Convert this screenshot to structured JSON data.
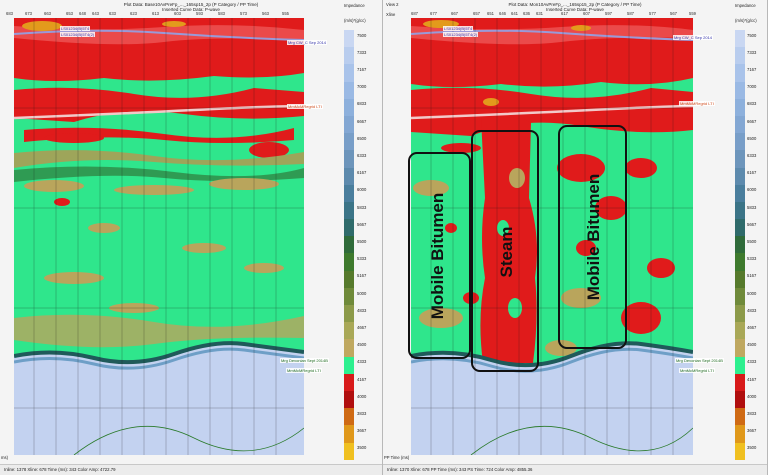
{
  "left_panel": {
    "corner_label": "",
    "title_line1": "Plot Data: Base10AvPreFp_..._165sp15_2p (P Category / PP Time)",
    "title_line2": "Inserted Curve Data: P-wave",
    "ticks": [
      "683",
      "673",
      "663",
      "653",
      "648",
      "643",
      "633",
      "623",
      "613",
      "603",
      "593",
      "583",
      "573",
      "563",
      "555"
    ],
    "horizon_top_labels": [
      "LS01234(B)5T4",
      "LS01234(B)5T4(2)"
    ],
    "horizon_mry": "Mrg CW_C Sep 2014",
    "horizon_mcm": "MmMcMRegrid LTI",
    "horizon_devonian": "Mrg Devonian Sept 2014B",
    "horizon_mcm_bottom": "MmMcMRegrid LTI",
    "time_label": "ms)",
    "status": "Inline: 1378  Xline: 678  Time (ms): 343  Color Amp: 4722.79"
  },
  "right_panel": {
    "corner_label": "Xline",
    "view_label": "View 2",
    "title_line1": "Plot Data: Mon10AvPreFp_..._165sp15_2p (P Category / PP Time)",
    "title_line2": "Inserted Curve Data: P-wave",
    "ticks": [
      "687",
      "677",
      "667",
      "657",
      "651",
      "646",
      "641",
      "636",
      "631",
      "617",
      "607",
      "597",
      "587",
      "577",
      "567",
      "559"
    ],
    "horizon_top_labels": [
      "LS01234(B)5T4",
      "LS01234(B)5T4(2)"
    ],
    "horizon_mry": "Mrg CW_C Sep 2014",
    "horizon_mcm": "MmMcMRegrid LTI",
    "horizon_devonian": "Mrg Devonian Sept 2014B",
    "horizon_mcm_bottom": "MmMcMRegrid LTI",
    "time_label": "PP Time (ms)",
    "status": "Inline: 1370  Xline: 678  PP Time (ms): 343  PS Time: 724  Color Amp: 4855.36"
  },
  "annotations": {
    "box1": "Mobile Bitumen",
    "box2": "Steam",
    "box3": "Mobile Bitumen"
  },
  "colorbar": {
    "title": "Impedance",
    "unit": "(m/s)*(g/cc)",
    "labels": [
      "7500",
      "7333",
      "7167",
      "7000",
      "6833",
      "6667",
      "6500",
      "6333",
      "6167",
      "6000",
      "5833",
      "5667",
      "5500",
      "5333",
      "5167",
      "5000",
      "4833",
      "4667",
      "4500",
      "4333",
      "4167",
      "4000",
      "3833",
      "3667",
      "3500"
    ],
    "colors": [
      "#c9d7f2",
      "#b9cdee",
      "#a9c3ea",
      "#9ab9e4",
      "#8db0dc",
      "#83a7d3",
      "#789ec8",
      "#6d95bb",
      "#5d8aad",
      "#4a7e9d",
      "#3b7487",
      "#2f6b6b",
      "#2f6b3a",
      "#3e7a2d",
      "#567a2c",
      "#6f8a3a",
      "#8c9a49",
      "#a9a857",
      "#bfa860",
      "#2df08f",
      "#d81a1a",
      "#b00e0e",
      "#cf6a14",
      "#e0981a",
      "#f0c020"
    ]
  }
}
